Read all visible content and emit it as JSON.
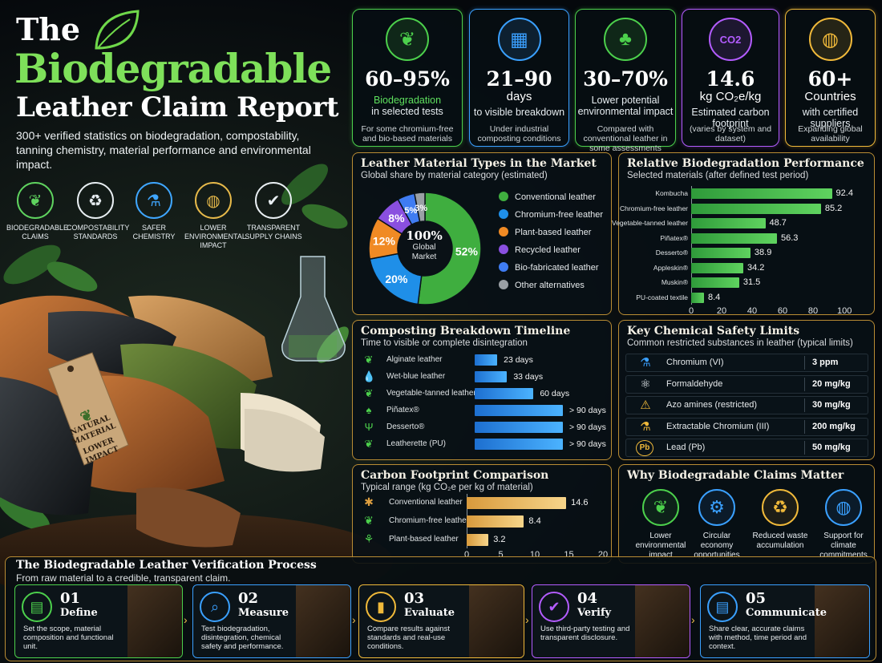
{
  "header": {
    "the": "The",
    "title_main": "Biodegradable",
    "title_sub": "Leather Claim Report",
    "description": "300+ verified statistics on biodegradation, compostability, tanning chemistry, material performance and environmental impact."
  },
  "categories": [
    {
      "label": "BIODEGRADABLE CLAIMS",
      "icon": "leaf-icon",
      "color": "#5fd35f"
    },
    {
      "label": "COMPOSTABILITY STANDARDS",
      "icon": "recycle-icon",
      "color": "#e8eef2"
    },
    {
      "label": "SAFER CHEMISTRY",
      "icon": "flask-icon",
      "color": "#3fa6ff"
    },
    {
      "label": "LOWER ENVIRONMENTAL IMPACT",
      "icon": "globe-icon",
      "color": "#e6b94a"
    },
    {
      "label": "TRANSPARENT SUPPLY CHAINS",
      "icon": "shield-check-icon",
      "color": "#e8eef2"
    }
  ],
  "tag": {
    "line1": "NATURAL",
    "line2": "MATERIAL",
    "line3": "LOWER",
    "line4": "IMPACT"
  },
  "stats": [
    {
      "value": "60–95%",
      "line1": "Biodegradation",
      "line1b": "in selected tests",
      "line2": "For some chromium-free and bio-based materials",
      "color": "#4cd04c",
      "icon": "leaf-icon"
    },
    {
      "value": "21–90",
      "value2": "days",
      "line1": "to visible breakdown",
      "line2": "Under industrial composting conditions",
      "color": "#3aa0ff",
      "icon": "calendar-icon"
    },
    {
      "value": "30–70%",
      "line1": "Lower potential environmental impact",
      "line2": "Compared with conventional leather in some assessments",
      "color": "#4cd04c",
      "icon": "tree-icon"
    },
    {
      "value": "14.6",
      "value2": "kg CO₂e/kg",
      "line1": "Estimated carbon footprint",
      "line2": "(varies by system and dataset)",
      "color": "#b35cff",
      "icon": "co2-icon",
      "badge": "CO2"
    },
    {
      "value": "60+",
      "value2": "Countries",
      "line1": "with certified suppliers",
      "line2": "Expanding global availability",
      "color": "#f0b93a",
      "icon": "globe-icon"
    }
  ],
  "market": {
    "title": "Leather Material Types in the Market",
    "subtitle": "Global share by material category (estimated)",
    "center_value": "100%",
    "center_label1": "Global",
    "center_label2": "Market"
  },
  "biodeg": {
    "title": "Relative Biodegradation Performance",
    "subtitle": "Selected materials (after defined test period)"
  },
  "timeline": {
    "title": "Composting Breakdown Timeline",
    "subtitle": "Time to visible or complete disintegration",
    "rows": [
      {
        "label": "Alginate leather",
        "value_label": "23 days",
        "icon": "leaf-icon",
        "color": "#4cd04c"
      },
      {
        "label": "Wet-blue leather",
        "value_label": "33 days",
        "icon": "droplet-icon",
        "color": "#3aa0ff"
      },
      {
        "label": "Vegetable-tanned leather",
        "value_label": "60 days",
        "icon": "leaf-icon",
        "color": "#4cd04c"
      },
      {
        "label": "Piñatex®",
        "value_label": "> 90 days",
        "icon": "pineapple-icon",
        "color": "#4cd04c"
      },
      {
        "label": "Desserto®",
        "value_label": "> 90 days",
        "icon": "cactus-icon",
        "color": "#4cd04c"
      },
      {
        "label": "Leatherette (PU)",
        "value_label": "> 90 days",
        "icon": "leaf-icon",
        "color": "#4cd04c"
      }
    ]
  },
  "chemical": {
    "title": "Key Chemical Safety Limits",
    "subtitle": "Common restricted substances in leather (typical limits)",
    "rows": [
      {
        "name": "Chromium (VI)",
        "value": "3 ppm",
        "icon": "flask-icon",
        "color": "#3aa0ff"
      },
      {
        "name": "Formaldehyde",
        "value": "20 mg/kg",
        "icon": "molecule-icon",
        "color": "#e8eef2"
      },
      {
        "name": "Azo amines (restricted)",
        "value": "30 mg/kg",
        "icon": "warning-icon",
        "color": "#f0b93a"
      },
      {
        "name": "Extractable Chromium (III)",
        "value": "200 mg/kg",
        "icon": "flask-icon",
        "color": "#f0b93a"
      },
      {
        "name": "Lead (Pb)",
        "value": "50 mg/kg",
        "icon": "lead-icon",
        "badge": "Pb",
        "color": "#f0b93a"
      }
    ]
  },
  "carbon": {
    "title": "Carbon Footprint Comparison",
    "subtitle": "Typical range (kg CO₂e per kg of material)",
    "icons": [
      "hide-icon",
      "leaf-icon",
      "sprout-icon"
    ]
  },
  "why": {
    "title": "Why Biodegradable Claims Matter",
    "items": [
      {
        "label": "Lower environmental impact",
        "icon": "leaf-icon",
        "color": "#4cd04c"
      },
      {
        "label": "Circular economy opportunities",
        "icon": "gear-icon",
        "color": "#3aa0ff"
      },
      {
        "label": "Reduced waste accumulation",
        "icon": "recycle-icon",
        "color": "#f0b93a"
      },
      {
        "label": "Support for climate commitments",
        "icon": "globe-icon",
        "color": "#3aa0ff"
      }
    ]
  },
  "process": {
    "title": "The Biodegradable Leather Verification Process",
    "subtitle": "From raw material to a credible, transparent claim.",
    "steps": [
      {
        "num": "01",
        "name": "Define",
        "desc": "Set the scope, material composition and functional unit.",
        "color": "#4cd04c",
        "icon": "clipboard-icon"
      },
      {
        "num": "02",
        "name": "Measure",
        "desc": "Test biodegradation, disintegration, chemical safety and performance.",
        "color": "#3aa0ff",
        "icon": "magnifier-icon"
      },
      {
        "num": "03",
        "name": "Evaluate",
        "desc": "Compare results against standards and real-use conditions.",
        "color": "#f0b93a",
        "icon": "bar-chart-icon"
      },
      {
        "num": "04",
        "name": "Verify",
        "desc": "Use third-party testing and transparent disclosure.",
        "color": "#b35cff",
        "icon": "shield-check-icon"
      },
      {
        "num": "05",
        "name": "Communicate",
        "desc": "Share clear, accurate claims with method, time period and context.",
        "color": "#3aa0ff",
        "icon": "document-icon"
      }
    ]
  },
  "chart_data": [
    {
      "type": "pie",
      "title": "Leather Material Types in the Market",
      "categories": [
        "Conventional leather",
        "Chromium-free leather",
        "Plant-based leather",
        "Recycled leather",
        "Bio-fabricated leather",
        "Other alternatives"
      ],
      "values": [
        52,
        20,
        12,
        8,
        5,
        3
      ],
      "labels": [
        "52%",
        "20%",
        "12%",
        "8%",
        "5%",
        "3%"
      ],
      "colors": [
        "#3fae3f",
        "#1f8fe8",
        "#f08a24",
        "#8a4fe0",
        "#3f7cf2",
        "#9aa0a5"
      ],
      "legend": "right"
    },
    {
      "type": "bar",
      "title": "Relative Biodegradation Performance",
      "categories": [
        "Kombucha",
        "Chromium-free leather",
        "Vegetable-tanned leather",
        "Piñatex®",
        "Desserto®",
        "Appleskin®",
        "Muskin®",
        "PU-coated textile"
      ],
      "values": [
        92.4,
        85.2,
        48.7,
        56.3,
        38.9,
        34.2,
        31.5,
        8.4
      ],
      "xlim": [
        0,
        100
      ],
      "xticks": [
        0,
        20,
        40,
        60,
        80,
        100
      ],
      "orientation": "horizontal"
    },
    {
      "type": "bar",
      "title": "Composting Breakdown Timeline",
      "categories": [
        "Alginate leather",
        "Wet-blue leather",
        "Vegetable-tanned leather",
        "Piñatex®",
        "Desserto®",
        "Leatherette (PU)"
      ],
      "values": [
        23,
        33,
        60,
        90,
        90,
        90
      ],
      "unit": "days",
      "orientation": "horizontal"
    },
    {
      "type": "bar",
      "title": "Carbon Footprint Comparison",
      "categories": [
        "Conventional leather",
        "Chromium-free leather",
        "Plant-based leather"
      ],
      "values": [
        14.6,
        8.4,
        3.2
      ],
      "xlim": [
        0,
        20
      ],
      "xticks": [
        0,
        5,
        10,
        15,
        20
      ],
      "orientation": "horizontal"
    }
  ]
}
